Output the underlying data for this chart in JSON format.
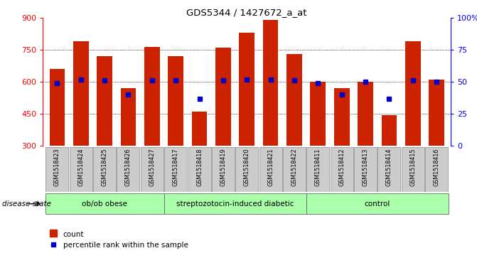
{
  "title": "GDS5344 / 1427672_a_at",
  "samples": [
    "GSM1518423",
    "GSM1518424",
    "GSM1518425",
    "GSM1518426",
    "GSM1518427",
    "GSM1518417",
    "GSM1518418",
    "GSM1518419",
    "GSM1518420",
    "GSM1518421",
    "GSM1518422",
    "GSM1518411",
    "GSM1518412",
    "GSM1518413",
    "GSM1518414",
    "GSM1518415",
    "GSM1518416"
  ],
  "counts": [
    660,
    790,
    720,
    570,
    765,
    720,
    460,
    760,
    830,
    890,
    730,
    600,
    570,
    600,
    445,
    790,
    610
  ],
  "percentiles": [
    49,
    52,
    51,
    40,
    51,
    51,
    37,
    51,
    52,
    52,
    51,
    49,
    40,
    50,
    37,
    51,
    50
  ],
  "groups": [
    {
      "name": "ob/ob obese",
      "start": 0,
      "end": 5
    },
    {
      "name": "streptozotocin-induced diabetic",
      "start": 5,
      "end": 11
    },
    {
      "name": "control",
      "start": 11,
      "end": 17
    }
  ],
  "group_color": "#aaffaa",
  "ymin": 300,
  "ymax": 900,
  "bar_color": "#cc2200",
  "dot_color": "#0000cc",
  "grid_values": [
    450,
    600,
    750
  ],
  "yticks": [
    300,
    450,
    600,
    750,
    900
  ],
  "right_yticks": [
    0,
    25,
    50,
    75,
    100
  ],
  "right_ytick_labels": [
    "0",
    "25",
    "50",
    "75",
    "100%"
  ],
  "tick_bg_color": "#cccccc",
  "fig_bg_color": "#ffffff"
}
